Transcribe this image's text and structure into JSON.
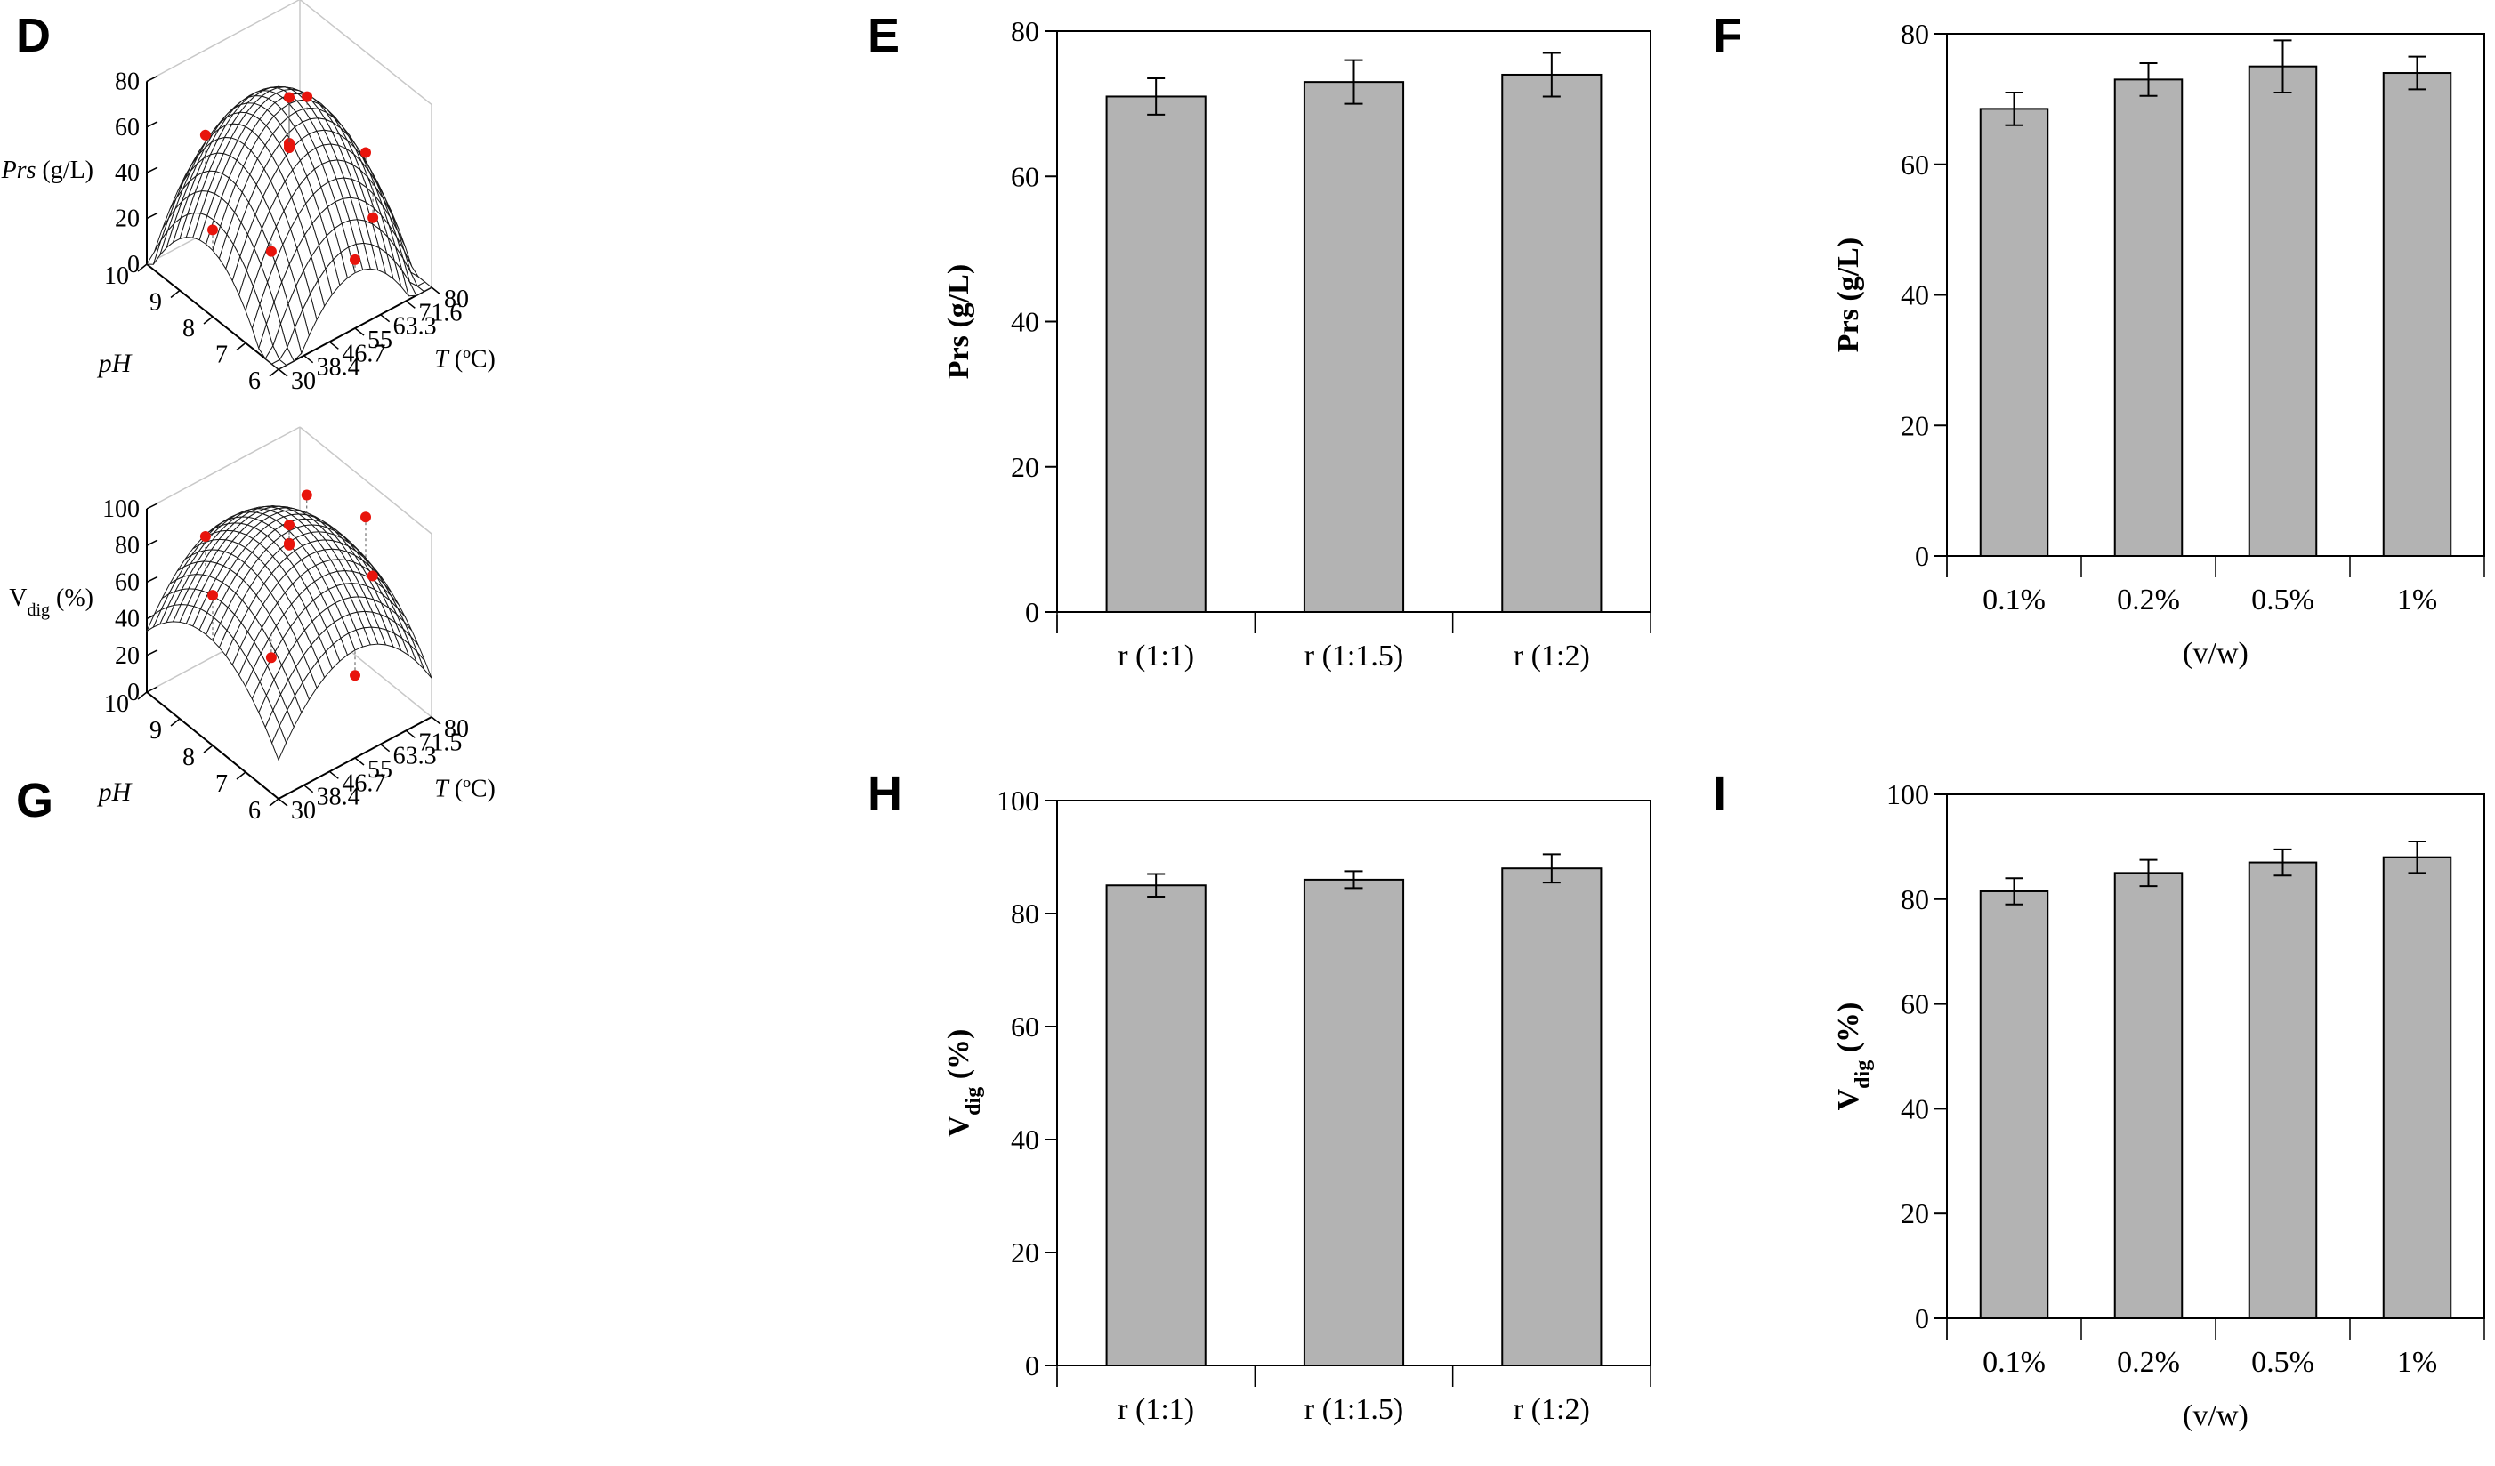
{
  "chart_data": [
    {
      "panel": "D",
      "type": "surface3d",
      "zlabel_italic": "Prs",
      "zlabel_unit": "(g/L)",
      "zticks": [
        "0",
        "20",
        "40",
        "60",
        "80"
      ],
      "yticks": [
        "10",
        "9",
        "8",
        "7",
        "6"
      ],
      "ylabel": "pH",
      "xticks": [
        "30",
        "38.4",
        "46.7",
        "55",
        "63.3",
        "71.6",
        "80"
      ],
      "xlabel_italic": "T",
      "xlabel_unit": "(ºC)",
      "zlim": [
        0,
        80
      ],
      "ylim": [
        6,
        10
      ],
      "xlim": [
        30,
        80
      ],
      "points": [
        {
          "T": 55,
          "pH": 8,
          "z": 78
        },
        {
          "T": 38.4,
          "pH": 9,
          "z": 62
        },
        {
          "T": 55,
          "pH": 8,
          "z": 58
        },
        {
          "T": 55,
          "pH": 8,
          "z": 57
        },
        {
          "T": 55,
          "pH": 8,
          "z": 56
        },
        {
          "T": 71.6,
          "pH": 9,
          "z": 55
        },
        {
          "T": 30,
          "pH": 8,
          "z": 38
        },
        {
          "T": 38.4,
          "pH": 7,
          "z": 34
        },
        {
          "T": 80,
          "pH": 8,
          "z": 36
        },
        {
          "T": 71.6,
          "pH": 7,
          "z": 25
        },
        {
          "T": 55,
          "pH": 6,
          "z": 30
        }
      ]
    },
    {
      "panel": "E",
      "type": "bar",
      "ylabel": "Prs (g/L)",
      "xlabel": "",
      "categories": [
        "r (1:1)",
        "r (1:1.5)",
        "r (1:2)"
      ],
      "values": [
        71,
        73,
        74
      ],
      "errors": [
        2.5,
        3,
        3
      ],
      "ylim": [
        0,
        80
      ],
      "yticks": [
        "0",
        "20",
        "40",
        "60",
        "80"
      ]
    },
    {
      "panel": "F",
      "type": "bar",
      "ylabel": "Prs (g/L)",
      "xlabel": "(v/w)",
      "categories": [
        "0.1%",
        "0.2%",
        "0.5%",
        "1%"
      ],
      "values": [
        68.5,
        73,
        75,
        74
      ],
      "errors": [
        2.5,
        2.5,
        4,
        2.5
      ],
      "ylim": [
        0,
        80
      ],
      "yticks": [
        "0",
        "20",
        "40",
        "60",
        "80"
      ]
    },
    {
      "panel": "G",
      "type": "surface3d",
      "zlabel_main": "V",
      "zlabel_sub": "dig",
      "zlabel_unit": "(%)",
      "zticks": [
        "0",
        "20",
        "40",
        "60",
        "80",
        "100"
      ],
      "yticks": [
        "10",
        "9",
        "8",
        "7",
        "6"
      ],
      "ylabel": "pH",
      "xticks": [
        "30",
        "38.4",
        "46.7",
        "55",
        "63.3",
        "71.5",
        "80"
      ],
      "xlabel_italic": "T",
      "xlabel_unit": "(ºC)",
      "zlim": [
        0,
        100
      ],
      "ylim": [
        6,
        10
      ],
      "xlim": [
        30,
        80
      ],
      "points": [
        {
          "T": 55,
          "pH": 8,
          "z": 98
        },
        {
          "T": 38.4,
          "pH": 9,
          "z": 92
        },
        {
          "T": 55,
          "pH": 8,
          "z": 88
        },
        {
          "T": 55,
          "pH": 8,
          "z": 87
        },
        {
          "T": 71.5,
          "pH": 9,
          "z": 85
        },
        {
          "T": 30,
          "pH": 8,
          "z": 82
        },
        {
          "T": 80,
          "pH": 8,
          "z": 80
        },
        {
          "T": 71.5,
          "pH": 7,
          "z": 70
        },
        {
          "T": 38.4,
          "pH": 7,
          "z": 55
        },
        {
          "T": 55,
          "pH": 6,
          "z": 45
        }
      ]
    },
    {
      "panel": "H",
      "type": "bar",
      "ylabel_main": "V",
      "ylabel_sub": "dig",
      "ylabel_unit": "(%)",
      "xlabel": "",
      "categories": [
        "r (1:1)",
        "r (1:1.5)",
        "r (1:2)"
      ],
      "values": [
        85,
        86,
        88
      ],
      "errors": [
        2,
        1.5,
        2.5
      ],
      "ylim": [
        0,
        100
      ],
      "yticks": [
        "0",
        "20",
        "40",
        "60",
        "80",
        "100"
      ]
    },
    {
      "panel": "I",
      "type": "bar",
      "ylabel_main": "V",
      "ylabel_sub": "dig",
      "ylabel_unit": "(%)",
      "xlabel": "(v/w)",
      "categories": [
        "0.1%",
        "0.2%",
        "0.5%",
        "1%"
      ],
      "values": [
        81.5,
        85,
        87,
        88
      ],
      "errors": [
        2.5,
        2.5,
        2.5,
        3
      ],
      "ylim": [
        0,
        100
      ],
      "yticks": [
        "0",
        "20",
        "40",
        "60",
        "80",
        "100"
      ]
    }
  ],
  "colors": {
    "bar_fill": "#b3b3b3",
    "point": "#e8140c",
    "axis": "#000000",
    "mesh": "#1a1a1a"
  }
}
